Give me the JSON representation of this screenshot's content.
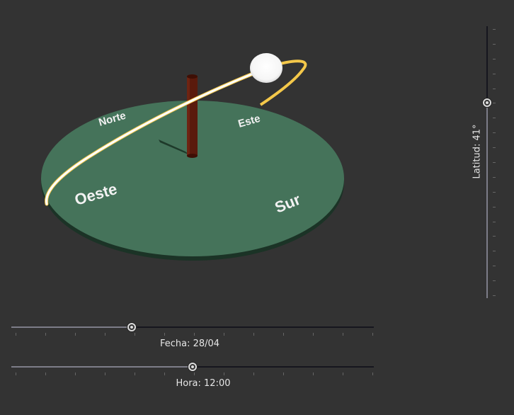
{
  "scene": {
    "cardinals": {
      "north": "Norte",
      "east": "Este",
      "west": "Oeste",
      "south": "Sur"
    },
    "colors": {
      "background": "#333333",
      "ground": "#45735a",
      "gnomon": "#5a1a0c",
      "sun": "#ffffff",
      "sun_path": "#ffcc33"
    }
  },
  "controls": {
    "fecha": {
      "label": "Fecha: 28/04",
      "value": 0.333
    },
    "hora": {
      "label": "Hora: 12:00",
      "value": 0.5
    },
    "latitud": {
      "label": "Latitud: 41°",
      "value": 0.72
    }
  }
}
